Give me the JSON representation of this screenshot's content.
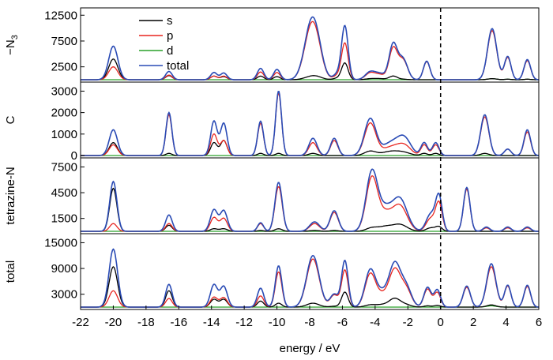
{
  "chart_data": {
    "type": "line",
    "xlabel": "energy / eV",
    "xlim": [
      -22,
      6
    ],
    "x_ticks": [
      "-22",
      "-20",
      "-18",
      "-16",
      "-14",
      "-12",
      "-10",
      "-8",
      "-6",
      "-4",
      "-2",
      "0",
      "2",
      "4",
      "6"
    ],
    "fermi_level": 0,
    "legend": {
      "placement": "top-left of first panel",
      "entries": [
        {
          "label": "s",
          "color": "#000000"
        },
        {
          "label": "p",
          "color": "#e8251f"
        },
        {
          "label": "d",
          "color": "#2aa02a"
        },
        {
          "label": "total",
          "color": "#2a4bb5"
        }
      ]
    },
    "panels": [
      {
        "label": "−N3",
        "label_main": "−N",
        "label_sub": "3",
        "ylim": [
          0,
          13000
        ],
        "y_ticks": [
          2500,
          7500,
          12500
        ],
        "y_tick_labels": [
          "2500",
          "7500",
          "12500"
        ],
        "peaks": [
          {
            "x": -20.0,
            "w": 0.28,
            "s": 4000,
            "p": 2500,
            "d": 0,
            "total": 6500
          },
          {
            "x": -16.6,
            "w": 0.2,
            "s": 800,
            "p": 900,
            "d": 0,
            "total": 1600
          },
          {
            "x": -13.85,
            "w": 0.2,
            "s": 700,
            "p": 700,
            "d": 0,
            "total": 1400
          },
          {
            "x": -13.25,
            "w": 0.2,
            "s": 600,
            "p": 700,
            "d": 0,
            "total": 1300
          },
          {
            "x": -11.0,
            "w": 0.2,
            "s": 700,
            "p": 1500,
            "d": 0,
            "total": 2200
          },
          {
            "x": -10.0,
            "w": 0.2,
            "s": 600,
            "p": 1400,
            "d": 0,
            "total": 2000
          },
          {
            "x": -7.9,
            "w": 0.42,
            "s": 600,
            "p": 9800,
            "d": 0,
            "total": 10500
          },
          {
            "x": -7.5,
            "w": 0.35,
            "s": 300,
            "p": 2500,
            "d": 0,
            "total": 2800
          },
          {
            "x": -6.3,
            "w": 0.25,
            "s": 300,
            "p": 800,
            "d": 0,
            "total": 1100
          },
          {
            "x": -5.85,
            "w": 0.2,
            "s": 3200,
            "p": 7000,
            "d": 0,
            "total": 10300
          },
          {
            "x": -4.3,
            "w": 0.3,
            "s": 200,
            "p": 1300,
            "d": 0,
            "total": 1500
          },
          {
            "x": -3.7,
            "w": 0.3,
            "s": 200,
            "p": 900,
            "d": 0,
            "total": 1100
          },
          {
            "x": -2.9,
            "w": 0.25,
            "s": 700,
            "p": 6000,
            "d": 0,
            "total": 6800
          },
          {
            "x": -2.3,
            "w": 0.28,
            "s": 100,
            "p": 3800,
            "d": 0,
            "total": 4000
          },
          {
            "x": -0.85,
            "w": 0.2,
            "s": 0,
            "p": 3500,
            "d": 0,
            "total": 3600
          },
          {
            "x": 3.15,
            "w": 0.28,
            "s": 200,
            "p": 9500,
            "d": 200,
            "total": 9900
          },
          {
            "x": 4.1,
            "w": 0.2,
            "s": 100,
            "p": 4300,
            "d": 100,
            "total": 4500
          },
          {
            "x": 5.3,
            "w": 0.2,
            "s": 100,
            "p": 3700,
            "d": 100,
            "total": 3900
          }
        ]
      },
      {
        "label": "C",
        "ylim": [
          0,
          3200
        ],
        "y_ticks": [
          0,
          1000,
          2000,
          3000
        ],
        "y_tick_labels": [
          "0",
          "1000",
          "2000",
          "3000"
        ],
        "peaks": [
          {
            "x": -20.0,
            "w": 0.25,
            "s": 600,
            "p": 500,
            "d": 0,
            "total": 1200
          },
          {
            "x": -16.6,
            "w": 0.18,
            "s": 100,
            "p": 1900,
            "d": 0,
            "total": 2000
          },
          {
            "x": -13.85,
            "w": 0.2,
            "s": 600,
            "p": 1000,
            "d": 0,
            "total": 1600
          },
          {
            "x": -13.25,
            "w": 0.2,
            "s": 700,
            "p": 700,
            "d": 0,
            "total": 1500
          },
          {
            "x": -11.0,
            "w": 0.18,
            "s": 100,
            "p": 1500,
            "d": 0,
            "total": 1600
          },
          {
            "x": -9.9,
            "w": 0.18,
            "s": 100,
            "p": 2900,
            "d": 0,
            "total": 3000
          },
          {
            "x": -7.8,
            "w": 0.25,
            "s": 100,
            "p": 600,
            "d": 0,
            "total": 800
          },
          {
            "x": -6.5,
            "w": 0.22,
            "s": 0,
            "p": 700,
            "d": 0,
            "total": 800
          },
          {
            "x": -4.3,
            "w": 0.35,
            "s": 200,
            "p": 1500,
            "d": 0,
            "total": 1700
          },
          {
            "x": -3.0,
            "w": 0.55,
            "s": 200,
            "p": 400,
            "d": 0,
            "total": 600
          },
          {
            "x": -2.2,
            "w": 0.4,
            "s": 100,
            "p": 400,
            "d": 0,
            "total": 700
          },
          {
            "x": -1.0,
            "w": 0.2,
            "s": 100,
            "p": 500,
            "d": 0,
            "total": 600
          },
          {
            "x": -0.3,
            "w": 0.2,
            "s": 100,
            "p": 500,
            "d": 0,
            "total": 600
          },
          {
            "x": 2.7,
            "w": 0.25,
            "s": 100,
            "p": 1800,
            "d": 0,
            "total": 1900
          },
          {
            "x": 4.1,
            "w": 0.2,
            "s": 0,
            "p": 300,
            "d": 0,
            "total": 300
          },
          {
            "x": 5.3,
            "w": 0.2,
            "s": 0,
            "p": 1100,
            "d": 0,
            "total": 1200
          }
        ]
      },
      {
        "label": "tetrazine-N",
        "ylim": [
          0,
          8000
        ],
        "y_ticks": [
          1500,
          4500,
          7500
        ],
        "y_tick_labels": [
          "1500",
          "4500",
          "7500"
        ],
        "peaks": [
          {
            "x": -20.0,
            "w": 0.22,
            "s": 5000,
            "p": 900,
            "d": 0,
            "total": 5800
          },
          {
            "x": -16.6,
            "w": 0.2,
            "s": 700,
            "p": 900,
            "d": 0,
            "total": 1900
          },
          {
            "x": -13.85,
            "w": 0.22,
            "s": 300,
            "p": 1600,
            "d": 0,
            "total": 2500
          },
          {
            "x": -13.25,
            "w": 0.22,
            "s": 300,
            "p": 1500,
            "d": 0,
            "total": 2400
          },
          {
            "x": -11.0,
            "w": 0.18,
            "s": 100,
            "p": 900,
            "d": 0,
            "total": 1000
          },
          {
            "x": -9.9,
            "w": 0.22,
            "s": 300,
            "p": 5200,
            "d": 0,
            "total": 5700
          },
          {
            "x": -7.7,
            "w": 0.3,
            "s": 100,
            "p": 900,
            "d": 0,
            "total": 1100
          },
          {
            "x": -6.5,
            "w": 0.25,
            "s": 100,
            "p": 2200,
            "d": 0,
            "total": 2400
          },
          {
            "x": -4.2,
            "w": 0.35,
            "s": 400,
            "p": 6200,
            "d": 0,
            "total": 6900
          },
          {
            "x": -3.4,
            "w": 0.4,
            "s": 500,
            "p": 1800,
            "d": 0,
            "total": 2300
          },
          {
            "x": -2.5,
            "w": 0.45,
            "s": 800,
            "p": 3000,
            "d": 0,
            "total": 3800
          },
          {
            "x": -0.6,
            "w": 0.28,
            "s": 400,
            "p": 1500,
            "d": 0,
            "total": 2000
          },
          {
            "x": -0.1,
            "w": 0.2,
            "s": 500,
            "p": 3200,
            "d": 0,
            "total": 4000
          },
          {
            "x": 1.6,
            "w": 0.2,
            "s": 0,
            "p": 4900,
            "d": 0,
            "total": 5100
          },
          {
            "x": 2.8,
            "w": 0.2,
            "s": 0,
            "p": 400,
            "d": 0,
            "total": 500
          },
          {
            "x": 4.1,
            "w": 0.2,
            "s": 0,
            "p": 400,
            "d": 0,
            "total": 500
          },
          {
            "x": 5.3,
            "w": 0.2,
            "s": 0,
            "p": 400,
            "d": 0,
            "total": 500
          }
        ]
      },
      {
        "label": "total",
        "ylim": [
          0,
          16000
        ],
        "y_ticks": [
          3000,
          9000,
          15000
        ],
        "y_tick_labels": [
          "3000",
          "9000",
          "15000"
        ],
        "peaks": [
          {
            "x": -20.0,
            "w": 0.26,
            "s": 9400,
            "p": 3800,
            "d": 0,
            "total": 13500
          },
          {
            "x": -16.6,
            "w": 0.2,
            "s": 3800,
            "p": 2000,
            "d": 0,
            "total": 5300
          },
          {
            "x": -13.85,
            "w": 0.22,
            "s": 1800,
            "p": 2300,
            "d": 0,
            "total": 5200
          },
          {
            "x": -13.25,
            "w": 0.22,
            "s": 1800,
            "p": 2200,
            "d": 0,
            "total": 4800
          },
          {
            "x": -11.0,
            "w": 0.2,
            "s": 1400,
            "p": 2600,
            "d": 0,
            "total": 4400
          },
          {
            "x": -9.9,
            "w": 0.2,
            "s": 900,
            "p": 8200,
            "d": 0,
            "total": 9600
          },
          {
            "x": -7.8,
            "w": 0.38,
            "s": 900,
            "p": 11200,
            "d": 0,
            "total": 12000
          },
          {
            "x": -6.5,
            "w": 0.25,
            "s": 200,
            "p": 2800,
            "d": 0,
            "total": 3000
          },
          {
            "x": -5.85,
            "w": 0.2,
            "s": 3500,
            "p": 8600,
            "d": 0,
            "total": 10800
          },
          {
            "x": -4.3,
            "w": 0.32,
            "s": 500,
            "p": 7600,
            "d": 0,
            "total": 8500
          },
          {
            "x": -3.6,
            "w": 0.35,
            "s": 500,
            "p": 2500,
            "d": 0,
            "total": 3000
          },
          {
            "x": -2.8,
            "w": 0.35,
            "s": 2000,
            "p": 8600,
            "d": 0,
            "total": 10000
          },
          {
            "x": -2.1,
            "w": 0.32,
            "s": 500,
            "p": 4000,
            "d": 0,
            "total": 4500
          },
          {
            "x": -0.8,
            "w": 0.22,
            "s": 300,
            "p": 4200,
            "d": 0,
            "total": 4600
          },
          {
            "x": -0.2,
            "w": 0.2,
            "s": 400,
            "p": 3400,
            "d": 0,
            "total": 4000
          },
          {
            "x": 1.6,
            "w": 0.22,
            "s": 0,
            "p": 4600,
            "d": 0,
            "total": 4900
          },
          {
            "x": 3.1,
            "w": 0.28,
            "s": 500,
            "p": 9400,
            "d": 300,
            "total": 10100
          },
          {
            "x": 4.1,
            "w": 0.2,
            "s": 0,
            "p": 4900,
            "d": 0,
            "total": 5100
          },
          {
            "x": 5.3,
            "w": 0.2,
            "s": 0,
            "p": 4800,
            "d": 0,
            "total": 5100
          }
        ]
      }
    ]
  }
}
